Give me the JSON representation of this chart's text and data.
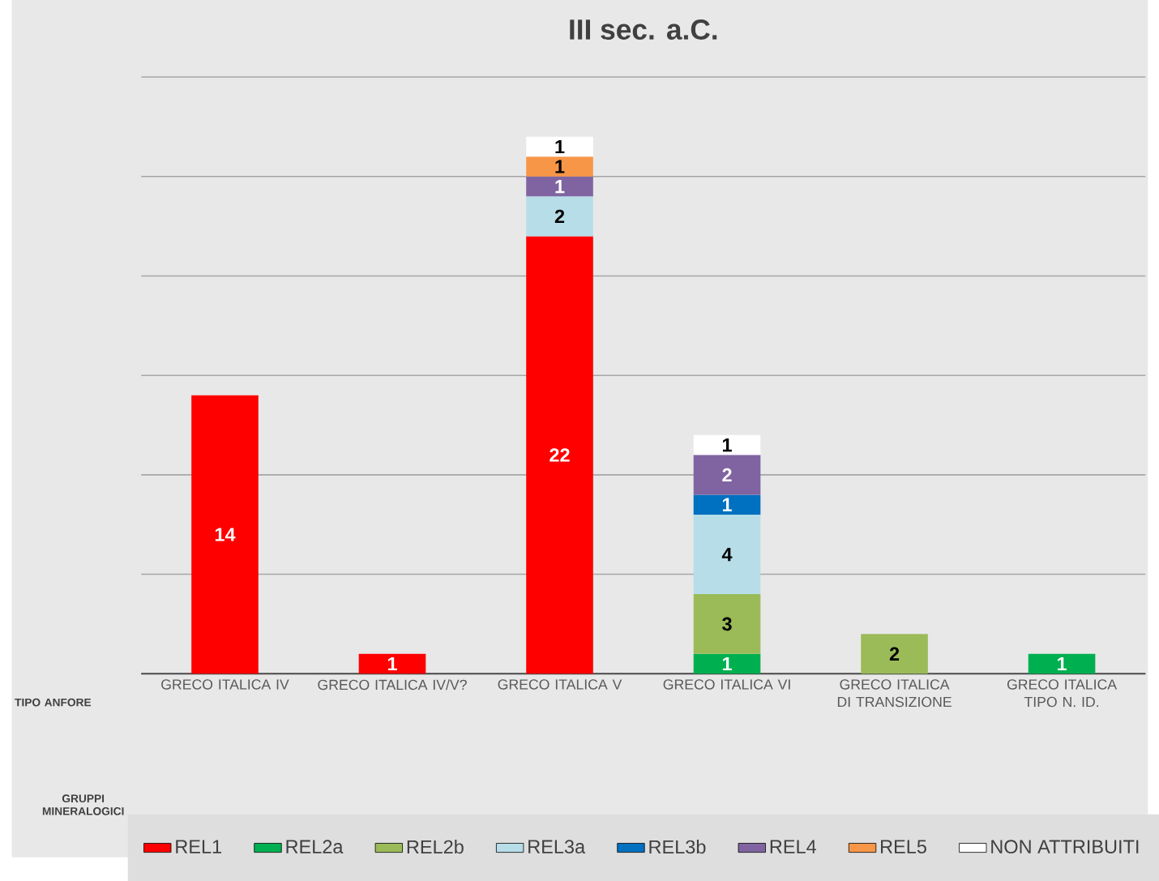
{
  "chart_data": {
    "type": "bar",
    "stacked": true,
    "title": "III sec. a.C.",
    "xlabel": "TIPO ANFORE",
    "legend_title": "GRUPPI MINERALOGICI",
    "categories": [
      "GRECO ITALICA IV",
      "GRECO ITALICA IV/V?",
      "GRECO ITALICA V",
      "GRECO ITALICA VI",
      "GRECO ITALICA DI TRANSIZIONE",
      "GRECO ITALICA TIPO N. ID."
    ],
    "series": [
      {
        "name": "REL1",
        "color": "#ff0000",
        "values": [
          14,
          1,
          22,
          null,
          null,
          null
        ]
      },
      {
        "name": "REL2a",
        "color": "#00b050",
        "values": [
          null,
          null,
          null,
          1,
          null,
          1
        ]
      },
      {
        "name": "REL2b",
        "color": "#9bbb59",
        "values": [
          null,
          null,
          null,
          3,
          2,
          null
        ]
      },
      {
        "name": "REL3a",
        "color": "#b7dde8",
        "values": [
          null,
          null,
          2,
          4,
          null,
          null
        ]
      },
      {
        "name": "REL3b",
        "color": "#0070c0",
        "values": [
          null,
          null,
          null,
          1,
          null,
          null
        ]
      },
      {
        "name": "REL4",
        "color": "#8064a2",
        "values": [
          null,
          null,
          1,
          2,
          null,
          null
        ]
      },
      {
        "name": "REL5",
        "color": "#f79646",
        "values": [
          null,
          null,
          1,
          null,
          null,
          null
        ]
      },
      {
        "name": "NON ATTRIBUITI",
        "color": "#ffffff",
        "values": [
          null,
          null,
          1,
          1,
          null,
          null
        ]
      }
    ],
    "ylim": [
      0,
      30
    ],
    "yticks": [
      {
        "value": 0,
        "label": null
      },
      {
        "value": 5,
        "label": null
      },
      {
        "value": 10,
        "label": null
      },
      {
        "value": 15,
        "label": null
      },
      {
        "value": 20,
        "label": null
      },
      {
        "value": 25,
        "label": null
      },
      {
        "value": 30,
        "label": null
      }
    ],
    "tick_labels": "x",
    "grid": "y",
    "legend": "bottom",
    "data_labels": true
  }
}
